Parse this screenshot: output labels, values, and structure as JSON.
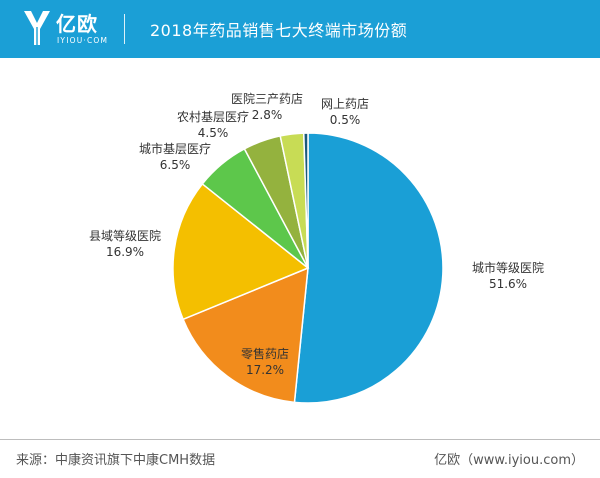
{
  "header": {
    "brand_name": "亿欧",
    "brand_sub": "IYIOU·COM",
    "logo_icon": "yiou-logo-icon",
    "background": "#1b9fd6"
  },
  "footer": {
    "source": "来源：中康资讯旗下中康CMH数据",
    "site": "亿欧（www.iyiou.com）"
  },
  "chart_data": {
    "type": "pie",
    "title": "2018年药品销售七大终端市场份额",
    "slices": [
      {
        "label": "城市等级医院",
        "value": 51.6,
        "display": "51.6%",
        "color": "#1a9fd6"
      },
      {
        "label": "零售药店",
        "value": 17.2,
        "display": "17.2%",
        "color": "#f28c1c"
      },
      {
        "label": "县域等级医院",
        "value": 16.9,
        "display": "16.9%",
        "color": "#f4bf00"
      },
      {
        "label": "城市基层医疗",
        "value": 6.5,
        "display": "6.5%",
        "color": "#5dc74b"
      },
      {
        "label": "农村基层医疗",
        "value": 4.5,
        "display": "4.5%",
        "color": "#94b23e"
      },
      {
        "label": "医院三产药店",
        "value": 2.8,
        "display": "2.8%",
        "color": "#c8dc55"
      },
      {
        "label": "网上药店",
        "value": 0.5,
        "display": "0.5%",
        "color": "#1c5a7c"
      }
    ],
    "start_angle": "12 o'clock",
    "direction": "clockwise"
  }
}
